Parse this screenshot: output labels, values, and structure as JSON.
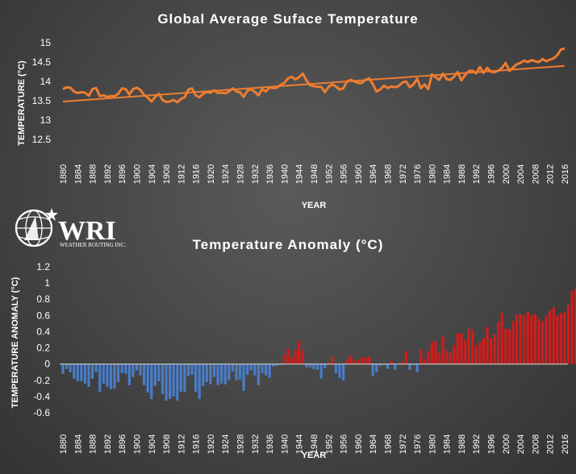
{
  "logo": {
    "text": "WRI",
    "subtext": "WEATHER ROUTING INC."
  },
  "colors": {
    "line": "#ed7d31",
    "trend": "#ed7d31",
    "positive": "#d01c1c",
    "negative": "#4a7cc6",
    "text": "#ffffff"
  },
  "chart_data": [
    {
      "type": "line",
      "title": "Global Average Suface Temperature",
      "xlabel": "YEAR",
      "ylabel": "TEMPERATURE (°C)",
      "ylim": [
        12.5,
        15
      ],
      "yticks": [
        "12.5",
        "13",
        "13.5",
        "14",
        "14.5",
        "15"
      ],
      "xlim": [
        1880,
        2016
      ],
      "xticks": [
        "1880",
        "1884",
        "1888",
        "1892",
        "1896",
        "1900",
        "1904",
        "1908",
        "1912",
        "1916",
        "1920",
        "1924",
        "1928",
        "1932",
        "1936",
        "1940",
        "1944",
        "1948",
        "1952",
        "1956",
        "1960",
        "1964",
        "1968",
        "1972",
        "1976",
        "1980",
        "1984",
        "1988",
        "1992",
        "1996",
        "2000",
        "2004",
        "2008",
        "2012",
        "2016"
      ],
      "x_start": 1880,
      "series": [
        {
          "values": [
            13.8,
            13.85,
            13.84,
            13.74,
            13.7,
            13.72,
            13.71,
            13.63,
            13.8,
            13.83,
            13.62,
            13.64,
            13.6,
            13.62,
            13.62,
            13.68,
            13.82,
            13.8,
            13.66,
            13.8,
            13.84,
            13.78,
            13.65,
            13.58,
            13.48,
            13.6,
            13.68,
            13.52,
            13.47,
            13.48,
            13.52,
            13.46,
            13.55,
            13.59,
            13.79,
            13.82,
            13.64,
            13.59,
            13.68,
            13.73,
            13.71,
            13.77,
            13.7,
            13.71,
            13.69,
            13.74,
            13.82,
            13.74,
            13.72,
            13.6,
            13.76,
            13.8,
            13.73,
            13.64,
            13.8,
            13.74,
            13.84,
            13.83,
            13.84,
            13.91,
            13.96,
            14.08,
            14.12,
            14.05,
            14.11,
            14.2,
            14.03,
            13.9,
            13.88,
            13.86,
            13.86,
            13.72,
            13.86,
            13.92,
            13.87,
            13.79,
            13.82,
            14.0,
            14.04,
            14.0,
            13.96,
            13.96,
            14.04,
            14.08,
            13.93,
            13.74,
            13.79,
            13.89,
            13.83,
            13.87,
            13.85,
            13.88,
            13.97,
            14.0,
            13.85,
            13.92,
            14.07,
            13.82,
            13.92,
            13.8,
            14.18,
            14.11,
            14.04,
            14.2,
            14.06,
            14.04,
            14.12,
            14.24,
            14.03,
            14.16,
            14.27,
            14.28,
            14.21,
            14.37,
            14.22,
            14.35,
            14.25,
            14.24,
            14.28,
            14.35,
            14.48,
            14.27,
            14.36,
            14.44,
            14.48,
            14.54,
            14.5,
            14.55,
            14.52,
            14.5,
            14.58,
            14.52,
            14.56,
            14.6,
            14.68,
            14.83,
            14.85
          ]
        }
      ],
      "trend": {
        "start": [
          1880,
          13.48
        ],
        "end": [
          2016,
          14.4
        ]
      }
    },
    {
      "type": "bar",
      "title": "Temperature Anomaly (°C)",
      "xlabel": "YEAR",
      "ylabel": "TEMPERATURE ANOMALY (°C)",
      "ylim": [
        -0.6,
        1.2
      ],
      "yticks": [
        "-0.6",
        "-0.4",
        "-0.2",
        "0",
        "0.2",
        "0.4",
        "0.6",
        "0.8",
        "1",
        "1.2"
      ],
      "xlim": [
        1880,
        2016
      ],
      "xticks": [
        "1880",
        "1884",
        "1888",
        "1892",
        "1896",
        "1900",
        "1904",
        "1908",
        "1912",
        "1916",
        "1920",
        "1924",
        "1928",
        "1932",
        "1936",
        "1940",
        "1944",
        "1948",
        "1952",
        "1956",
        "1960",
        "1964",
        "1968",
        "1972",
        "1976",
        "1980",
        "1984",
        "1988",
        "1992",
        "1996",
        "2000",
        "2004",
        "2008",
        "2012",
        "2016"
      ],
      "x_start": 1880,
      "values": [
        -0.12,
        -0.06,
        -0.1,
        -0.18,
        -0.21,
        -0.21,
        -0.24,
        -0.28,
        -0.18,
        -0.1,
        -0.34,
        -0.24,
        -0.28,
        -0.31,
        -0.3,
        -0.22,
        -0.11,
        -0.12,
        -0.26,
        -0.16,
        -0.08,
        -0.14,
        -0.26,
        -0.35,
        -0.43,
        -0.27,
        -0.21,
        -0.37,
        -0.45,
        -0.43,
        -0.4,
        -0.45,
        -0.34,
        -0.34,
        -0.15,
        -0.13,
        -0.34,
        -0.43,
        -0.27,
        -0.22,
        -0.25,
        -0.16,
        -0.26,
        -0.24,
        -0.25,
        -0.2,
        -0.09,
        -0.2,
        -0.19,
        -0.33,
        -0.13,
        -0.08,
        -0.14,
        -0.26,
        -0.11,
        -0.14,
        -0.17,
        -0.03,
        -0.02,
        -0.01,
        0.12,
        0.19,
        0.08,
        0.17,
        0.29,
        0.17,
        -0.04,
        -0.04,
        -0.06,
        -0.07,
        -0.18,
        -0.05,
        0.02,
        0.09,
        -0.11,
        -0.17,
        -0.2,
        0.06,
        0.11,
        0.06,
        0.04,
        0.08,
        0.08,
        0.09,
        -0.15,
        -0.1,
        -0.02,
        -0.01,
        -0.06,
        0.04,
        -0.07,
        0.01,
        0.03,
        0.16,
        -0.07,
        -0.01,
        -0.1,
        0.18,
        0.07,
        0.16,
        0.27,
        0.29,
        0.14,
        0.34,
        0.17,
        0.14,
        0.23,
        0.38,
        0.38,
        0.3,
        0.44,
        0.42,
        0.23,
        0.27,
        0.32,
        0.46,
        0.32,
        0.37,
        0.52,
        0.63,
        0.44,
        0.43,
        0.53,
        0.61,
        0.62,
        0.6,
        0.65,
        0.6,
        0.62,
        0.56,
        0.53,
        0.6,
        0.66,
        0.7,
        0.6,
        0.63,
        0.64,
        0.73,
        0.9,
        0.93
      ]
    }
  ]
}
